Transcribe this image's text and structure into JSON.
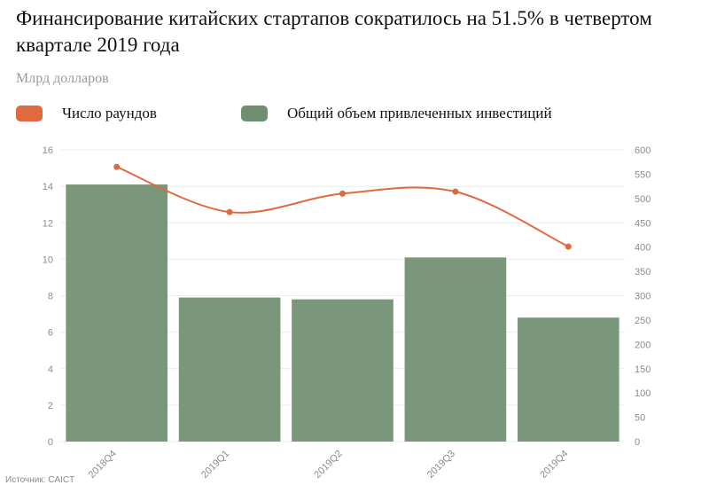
{
  "header": {
    "title": "Финансирование китайских стартапов сократилось на 51.5% в четвертом квартале 2019 года",
    "unit": "Млрд долларов"
  },
  "legend": [
    {
      "label": "Число раундов",
      "color": "#e06a3f"
    },
    {
      "label": "Общий объем привлеченных инвестиций",
      "color": "#6f8f6f"
    }
  ],
  "source": "Источник: CAICT",
  "chart_data": {
    "type": "bar",
    "categories": [
      "2018Q4",
      "2019Q1",
      "2019Q2",
      "2019Q3",
      "2019Q4"
    ],
    "series": [
      {
        "name": "Общий объем привлеченных инвестиций",
        "type": "bar",
        "axis": "left",
        "values": [
          14.1,
          7.9,
          7.8,
          10.1,
          6.8
        ],
        "color": "#7a977b"
      },
      {
        "name": "Число раундов",
        "type": "line",
        "axis": "right",
        "values": [
          565,
          472,
          510,
          514,
          401
        ],
        "color": "#e06a3f"
      }
    ],
    "ylim": [
      0,
      16
    ],
    "yticks": [
      0,
      2,
      4,
      6,
      8,
      10,
      12,
      14,
      16
    ],
    "y2lim": [
      0,
      600
    ],
    "y2ticks": [
      0,
      50,
      100,
      150,
      200,
      250,
      300,
      350,
      400,
      450,
      500,
      550,
      600
    ],
    "grid": true
  }
}
